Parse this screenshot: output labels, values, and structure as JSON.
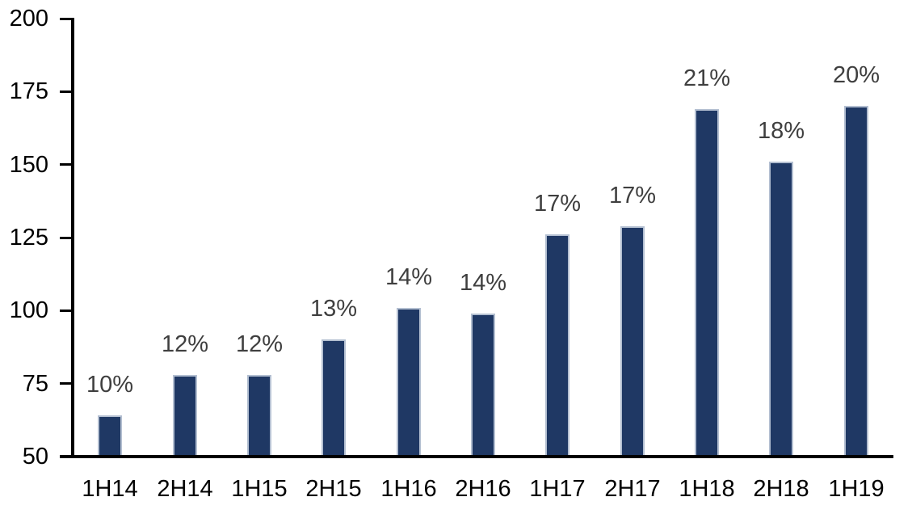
{
  "chart_data": {
    "type": "bar",
    "title": "",
    "xlabel": "",
    "ylabel": "",
    "categories": [
      "1H14",
      "2H14",
      "1H15",
      "2H15",
      "1H16",
      "2H16",
      "1H17",
      "2H17",
      "1H18",
      "2H18",
      "1H19"
    ],
    "values": [
      64,
      78,
      78,
      90,
      101,
      99,
      126,
      129,
      169,
      151,
      170
    ],
    "bar_labels": [
      "10%",
      "12%",
      "12%",
      "13%",
      "14%",
      "14%",
      "17%",
      "17%",
      "21%",
      "18%",
      "20%"
    ],
    "ylim": [
      50,
      200
    ],
    "yticks": [
      50,
      75,
      100,
      125,
      150,
      175,
      200
    ],
    "grid": false,
    "legend": false,
    "colors": {
      "bar_fill": "#1f3864",
      "bar_border": "#b3bfd1",
      "value_label": "#3f3f3f",
      "axis": "#000000",
      "tick_label": "#000000",
      "background": "#ffffff"
    }
  }
}
